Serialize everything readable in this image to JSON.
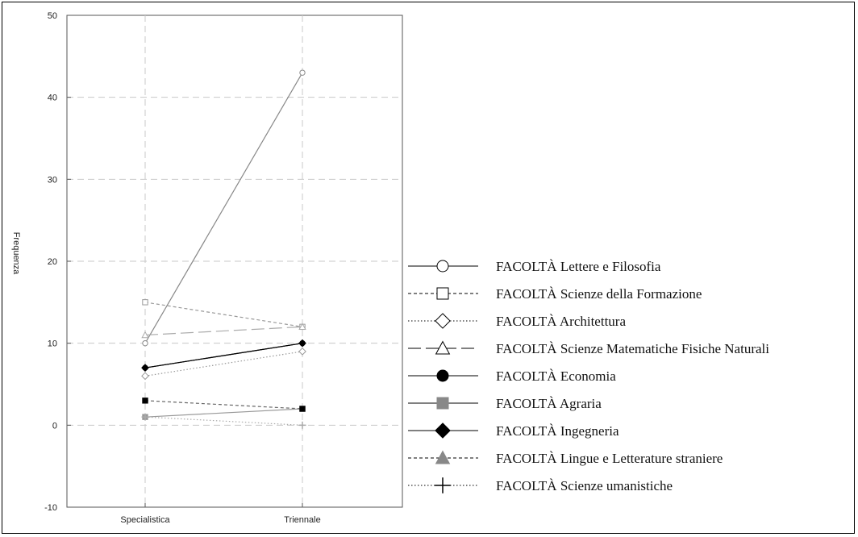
{
  "chart_data": {
    "type": "line",
    "title": "",
    "xlabel": "",
    "ylabel": "Frequenza",
    "categories": [
      "Specialistica",
      "Triennale"
    ],
    "ylim": [
      -10,
      50
    ],
    "yticks": [
      -10,
      0,
      10,
      20,
      30,
      40,
      50
    ],
    "grid": true,
    "legend_position": "right",
    "series": [
      {
        "name": "FACOLTÀ  Lettere e Filosofia",
        "values": [
          10,
          43
        ],
        "marker": "circle-open",
        "dash": "solid",
        "color": "#888888",
        "legend_color": "#000000"
      },
      {
        "name": "FACOLTÀ  Scienze della Formazione",
        "values": [
          15,
          12
        ],
        "marker": "square-open",
        "dash": "dashed",
        "color": "#999999",
        "legend_color": "#000000"
      },
      {
        "name": "FACOLTÀ  Architettura",
        "values": [
          6,
          9
        ],
        "marker": "diamond-open",
        "dash": "dotted",
        "color": "#999999",
        "legend_color": "#000000"
      },
      {
        "name": "FACOLTÀ  Scienze Matematiche Fisiche Naturali",
        "values": [
          11,
          12
        ],
        "marker": "triangle-open",
        "dash": "longdash",
        "color": "#aaaaaa",
        "legend_color": "#000000"
      },
      {
        "name": "FACOLTÀ  Economia",
        "values": [
          7,
          10
        ],
        "marker": "circle-filled",
        "dash": "solid",
        "color": "#000000",
        "legend_color": "#000000"
      },
      {
        "name": "FACOLTÀ  Agraria",
        "values": [
          1,
          2
        ],
        "marker": "square-filled",
        "dash": "solid",
        "color": "#999999",
        "legend_color": "#888888"
      },
      {
        "name": "FACOLTÀ  Ingegneria",
        "values": [
          7,
          10
        ],
        "marker": "diamond-filled",
        "dash": "solid",
        "color": "#000000",
        "legend_color": "#000000"
      },
      {
        "name": "FACOLTÀ  Lingue e Letterature straniere",
        "values": [
          3,
          2
        ],
        "marker": "square-filled-black",
        "dash": "dashed",
        "color": "#666666",
        "legend_color": "#888888"
      },
      {
        "name": "FACOLTÀ  Scienze umanistiche",
        "values": [
          1,
          0
        ],
        "marker": "plus",
        "dash": "dotted",
        "color": "#aaaaaa",
        "legend_color": "#000000"
      }
    ]
  }
}
